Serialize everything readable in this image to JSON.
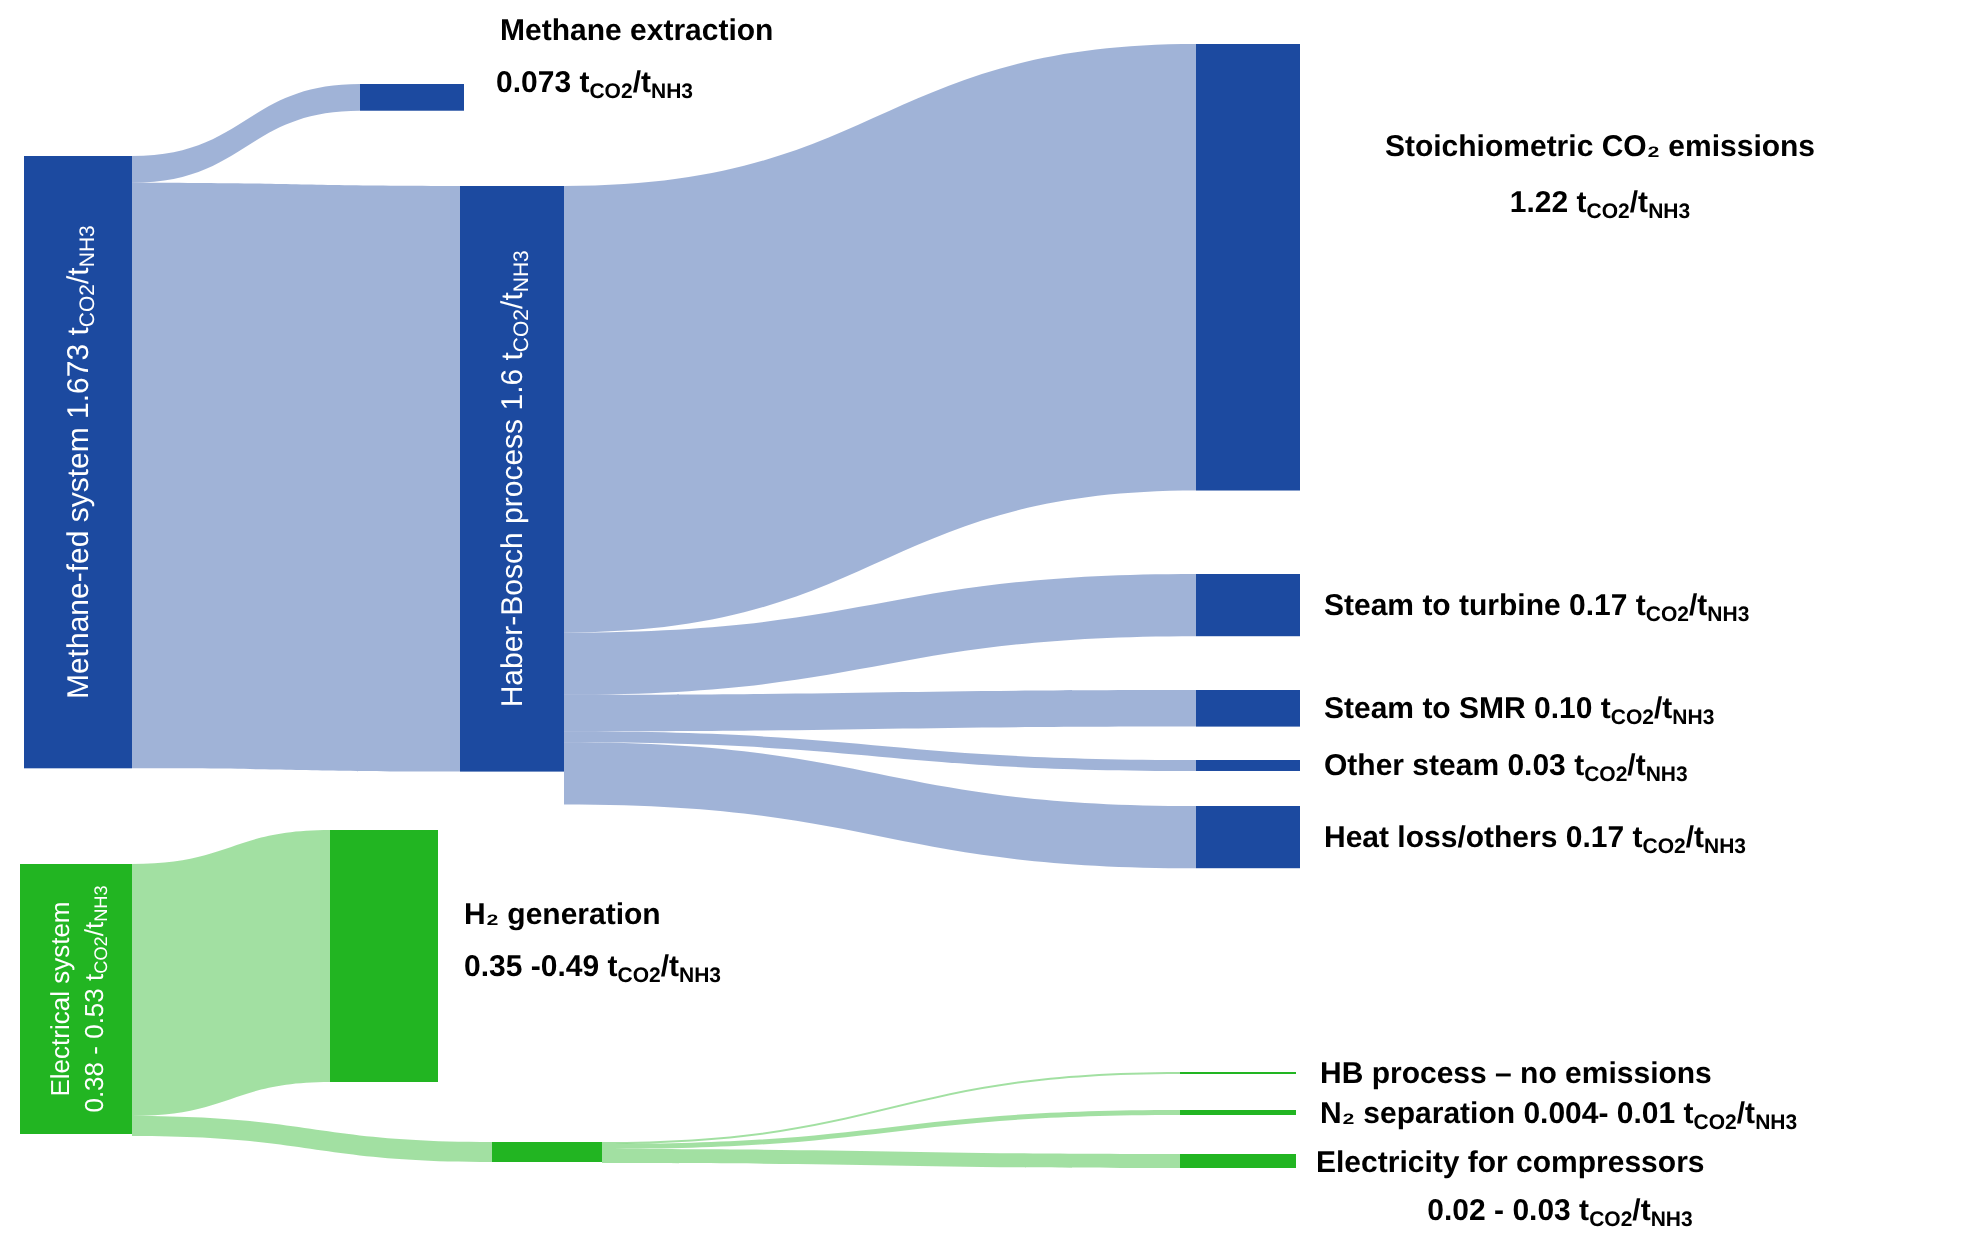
{
  "chart_data": {
    "type": "other",
    "categories": [
      "Methane-fed system",
      "Methane extraction",
      "Haber-Bosch process",
      "Stoichiometric CO₂ emissions",
      "Steam to turbine",
      "Steam to SMR",
      "Other steam",
      "Heat loss/others",
      "Electrical system",
      "H₂ generation",
      null,
      "HB process – no emissions",
      "N₂ separation",
      "Electricity for compressors"
    ],
    "values": [
      1.673,
      0.073,
      1.6,
      1.22,
      0.17,
      0.1,
      0.03,
      0.17,
      null,
      null,
      null,
      null,
      null,
      null
    ],
    "value_labels": [
      "1.673 t$_{CO2}$/t$_{NH3}$",
      "0.073 t$_{CO2}$/t$_{NH3}$",
      "1.6 t$_{CO2}$/t$_{NH3}$",
      "1.22 t$_{CO2}$/t$_{NH3}$",
      "0.17 t$_{CO2}$/t$_{NH3}$",
      "0.10 t$_{CO2}$/t$_{NH3}$",
      "0.03 t$_{CO2}$/t$_{NH3}$",
      "0.17 t$_{CO2}$/t$_{NH3}$",
      "0.38 - 0.53 t$_{CO2}$/t$_{NH3}$",
      "0.35 -0.49 t$_{CO2}$/t$_{NH3}$",
      null,
      null,
      "0.004- 0.01 t$_{CO2}$/t$_{NH3}$",
      "0.02 - 0.03 t$_{CO2}$/t$_{NH3}$"
    ],
    "colors": [
      "#1c4aa0",
      "#1c4aa0",
      "#1c4aa0",
      "#1c4aa0",
      "#1c4aa0",
      "#1c4aa0",
      "#1c4aa0",
      "#1c4aa0",
      "#22b522",
      "#22b522",
      "#22b522",
      "#22b522",
      "#22b522",
      "#22b522"
    ]
  }
}
